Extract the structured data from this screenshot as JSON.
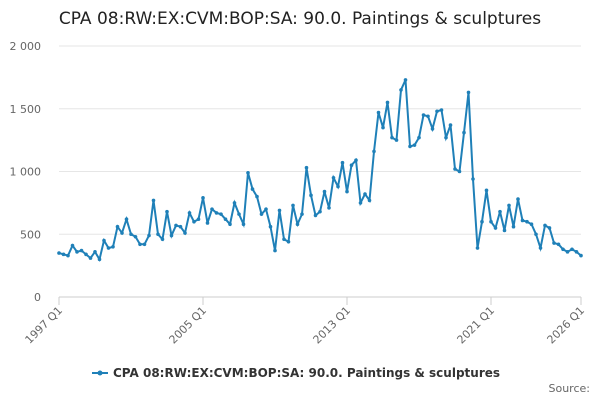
{
  "chart_data": {
    "type": "line",
    "title": "CPA 08:RW:EX:CVM:BOP:SA: 90.0. Paintings & sculptures",
    "source": "Source:",
    "categories": [
      "1997 Q1",
      null,
      null,
      null,
      null,
      null,
      null,
      null,
      null,
      null,
      null,
      null,
      null,
      null,
      null,
      null,
      null,
      null,
      null,
      null,
      null,
      null,
      null,
      null,
      null,
      null,
      null,
      null,
      null,
      null,
      null,
      null,
      "2005 Q1",
      null,
      null,
      null,
      null,
      null,
      null,
      null,
      null,
      null,
      null,
      null,
      null,
      null,
      null,
      null,
      null,
      null,
      null,
      null,
      null,
      null,
      null,
      null,
      null,
      null,
      null,
      null,
      null,
      null,
      null,
      null,
      "2013 Q1",
      null,
      null,
      null,
      null,
      null,
      null,
      null,
      null,
      null,
      null,
      null,
      null,
      null,
      null,
      null,
      null,
      null,
      null,
      null,
      null,
      null,
      null,
      null,
      null,
      null,
      null,
      null,
      null,
      null,
      null,
      null,
      "2021 Q1",
      null,
      null,
      null,
      null,
      null,
      null,
      null,
      null,
      null,
      null,
      null,
      null,
      null,
      null,
      null,
      null,
      null,
      null,
      null,
      "2026 Q1"
    ],
    "series": [
      {
        "name": "CPA 08:RW:EX:CVM:BOP:SA: 90.0. Paintings & sculptures",
        "color": "#1f80b8",
        "values": [
          350,
          340,
          330,
          410,
          360,
          370,
          340,
          310,
          360,
          300,
          450,
          390,
          400,
          560,
          510,
          620,
          500,
          480,
          420,
          420,
          490,
          770,
          500,
          460,
          680,
          490,
          570,
          560,
          510,
          670,
          600,
          620,
          790,
          590,
          700,
          670,
          660,
          620,
          580,
          750,
          660,
          580,
          990,
          860,
          800,
          660,
          700,
          560,
          370,
          690,
          460,
          440,
          730,
          580,
          660,
          1030,
          810,
          650,
          680,
          840,
          710,
          950,
          880,
          1070,
          840,
          1050,
          1090,
          750,
          820,
          770,
          1160,
          1470,
          1350,
          1550,
          1270,
          1250,
          1650,
          1730,
          1200,
          1210,
          1270,
          1450,
          1440,
          1340,
          1480,
          1490,
          1270,
          1370,
          1020,
          1000,
          1310,
          1630,
          940,
          390,
          600,
          850,
          600,
          550,
          680,
          530,
          730,
          560,
          780,
          610,
          600,
          580,
          500,
          390,
          570,
          550,
          430,
          420,
          380,
          360,
          380,
          360,
          330
        ]
      }
    ],
    "ylim": [
      0,
      2000
    ],
    "yticks": [
      0,
      500,
      {
        "value": 1000,
        "label": "1 000"
      },
      {
        "value": 1500,
        "label": "1 500"
      },
      {
        "value": 2000,
        "label": "2 000"
      }
    ],
    "grid": true
  }
}
